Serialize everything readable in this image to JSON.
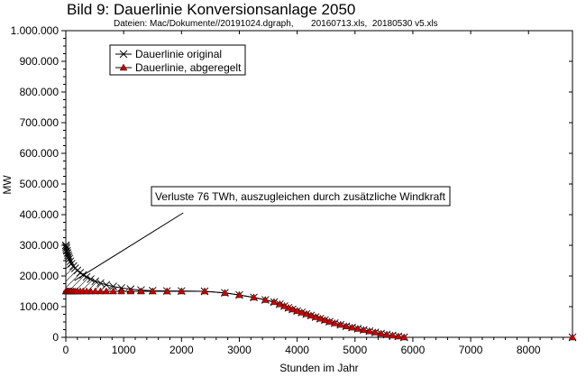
{
  "title": "Bild 9: Dauerlinie Konversionsanlage 2050",
  "subtitle": "Dateien: Mac/Dokumente//20191024.dgraph,       20160713.xls,  20180530 v5.xls",
  "chart_data": {
    "type": "line",
    "xlabel": "Stunden im Jahr",
    "ylabel": "MW",
    "xlim": [
      0,
      8760
    ],
    "ylim": [
      0,
      1000000
    ],
    "x_ticks": [
      0,
      1000,
      2000,
      3000,
      4000,
      5000,
      6000,
      7000,
      8000
    ],
    "y_ticks": [
      0,
      100000,
      200000,
      300000,
      400000,
      500000,
      600000,
      700000,
      800000,
      900000,
      1000000
    ],
    "y_tick_labels": [
      "0",
      "100.000",
      "200.000",
      "300.000",
      "400.000",
      "500.000",
      "600.000",
      "700.000",
      "800.000",
      "900.000",
      "1.000.000"
    ],
    "grid": false,
    "legend_position": "top-left",
    "series": [
      {
        "name": "Dauerlinie original",
        "marker": "x",
        "color": "#000000",
        "x": [
          0,
          5,
          10,
          20,
          30,
          40,
          50,
          60,
          80,
          100,
          130,
          160,
          200,
          250,
          300,
          360,
          430,
          510,
          600,
          700,
          820,
          960,
          1120,
          1300,
          1500,
          1750,
          2000,
          2400,
          2750,
          3000,
          3250,
          3450,
          3600,
          3700,
          3780,
          3850,
          3920,
          4000,
          4080,
          4160,
          4240,
          4320,
          4400,
          4480,
          4560,
          4650,
          4750,
          4850,
          4950,
          5050,
          5150,
          5250,
          5350,
          5450,
          5550,
          5650,
          5750,
          5850,
          8760
        ],
        "values": [
          300000,
          295000,
          290000,
          282000,
          275000,
          268000,
          262000,
          256000,
          248000,
          240000,
          232000,
          225000,
          218000,
          211000,
          204000,
          197000,
          190000,
          183000,
          177000,
          171000,
          166000,
          161000,
          157000,
          154000,
          152000,
          151000,
          151000,
          150000,
          145000,
          138000,
          130000,
          122000,
          115000,
          108000,
          102000,
          96000,
          91000,
          86000,
          81000,
          76000,
          71000,
          66000,
          61000,
          56000,
          51000,
          46000,
          41000,
          36000,
          32000,
          28000,
          24000,
          20000,
          16000,
          12000,
          9000,
          6000,
          3000,
          0,
          0
        ]
      },
      {
        "name": "Dauerlinie, abgeregelt",
        "marker": "triangle",
        "color": "#cc0000",
        "x": [
          0,
          20,
          40,
          60,
          80,
          100,
          130,
          160,
          200,
          250,
          300,
          360,
          430,
          510,
          600,
          700,
          820,
          960,
          1120,
          1300,
          1500,
          1750,
          2000,
          2400,
          2750,
          3000,
          3250,
          3450,
          3600,
          3700,
          3780,
          3850,
          3920,
          4000,
          4080,
          4160,
          4240,
          4320,
          4400,
          4480,
          4560,
          4650,
          4750,
          4850,
          4950,
          5050,
          5150,
          5250,
          5350,
          5450,
          5550,
          5650,
          5750,
          5850,
          8760
        ],
        "values": [
          150000,
          150000,
          150000,
          150000,
          150000,
          150000,
          150000,
          150000,
          150000,
          150000,
          150000,
          150000,
          150000,
          150000,
          150000,
          150000,
          150000,
          150000,
          150000,
          150000,
          150000,
          150000,
          150000,
          150000,
          145000,
          138000,
          130000,
          122000,
          115000,
          108000,
          102000,
          96000,
          91000,
          86000,
          81000,
          76000,
          71000,
          66000,
          61000,
          56000,
          51000,
          46000,
          41000,
          36000,
          32000,
          28000,
          24000,
          20000,
          16000,
          12000,
          9000,
          6000,
          3000,
          0,
          0
        ]
      }
    ],
    "annotation": {
      "text": "Verluste 76 TWh, auszugleichen durch zusätzliche Windkraft",
      "arrow_to": [
        150,
        185000
      ],
      "arrow_from": [
        2000,
        400000
      ]
    }
  }
}
